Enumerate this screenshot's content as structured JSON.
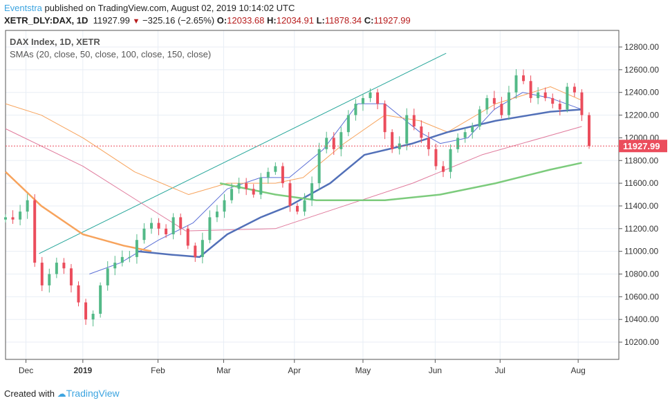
{
  "header": {
    "user": "Eventstra",
    "published": "published on TradingView.com, August 02, 2019 10:14:02 UTC",
    "symbol": "XETR_DLY:DAX, 1D",
    "last": "11927.99",
    "change": "−325.16 (−2.65%)",
    "o_label": "O:",
    "o": "12033.68",
    "h_label": "H:",
    "h": "12034.91",
    "l_label": "L:",
    "l": "11878.34",
    "c_label": "C:",
    "c": "11927.99"
  },
  "legend": {
    "title": "DAX Index, 1D, XETR",
    "indicator": "SMAs (20, close, 50, close, 100, close, 150, close)"
  },
  "footer": {
    "created": "Created with",
    "brand": "TradingView"
  },
  "chart_data": {
    "type": "candlestick",
    "title": "DAX Index, 1D, XETR",
    "ylim": [
      10100,
      12950
    ],
    "yticks": [
      "10200.00",
      "10400.00",
      "10600.00",
      "10800.00",
      "11000.00",
      "11200.00",
      "11400.00",
      "11600.00",
      "11800.00",
      "12000.00",
      "12200.00",
      "12400.00",
      "12600.00",
      "12800.00"
    ],
    "xticks": [
      {
        "label": "Dec",
        "i": 2.8
      },
      {
        "label": "2019",
        "i": 10.6
      },
      {
        "label": "Feb",
        "i": 20.9
      },
      {
        "label": "Mar",
        "i": 29.9
      },
      {
        "label": "Apr",
        "i": 39.6
      },
      {
        "label": "May",
        "i": 49
      },
      {
        "label": "Jun",
        "i": 58.9
      },
      {
        "label": "Jul",
        "i": 67.8
      },
      {
        "label": "Aug",
        "i": 78.5
      }
    ],
    "first_open": 11280,
    "closes": [
      11300,
      11280,
      11350,
      11450,
      10900,
      10700,
      10800,
      10900,
      10850,
      10700,
      10550,
      10400,
      10450,
      10700,
      10850,
      10900,
      10950,
      10950,
      11100,
      11200,
      11250,
      11200,
      11150,
      11300,
      11200,
      11050,
      10950,
      11100,
      11300,
      11350,
      11450,
      11550,
      11600,
      11550,
      11500,
      11650,
      11700,
      11750,
      11600,
      11400,
      11350,
      11450,
      11600,
      11900,
      12000,
      11900,
      12050,
      12200,
      12300,
      12350,
      12400,
      12300,
      12050,
      11900,
      11950,
      12200,
      12100,
      12000,
      11900,
      11750,
      11700,
      11900,
      12000,
      12050,
      12100,
      12250,
      12350,
      12300,
      12200,
      12400,
      12550,
      12500,
      12350,
      12400,
      12350,
      12300,
      12250,
      12450,
      12400,
      12200,
      11927.99
    ],
    "current_price": "11927.99",
    "colors": {
      "up": "#53b987",
      "down": "#eb4d5c"
    },
    "sma_lines": [
      {
        "name": "SMA 20",
        "color": "#5b6fd6",
        "width": 1,
        "points": [
          [
            11.5,
            10800
          ],
          [
            15.8,
            10900
          ],
          [
            21,
            11100
          ],
          [
            25.7,
            11250
          ],
          [
            30.4,
            11550
          ],
          [
            35,
            11650
          ],
          [
            38.9,
            11650
          ],
          [
            43.6,
            11900
          ],
          [
            48.3,
            12300
          ],
          [
            52,
            12300
          ],
          [
            56.8,
            12050
          ],
          [
            59.6,
            11950
          ],
          [
            63.4,
            12000
          ],
          [
            67,
            12250
          ],
          [
            70.9,
            12400
          ],
          [
            74.7,
            12350
          ],
          [
            79,
            12250
          ]
        ]
      },
      {
        "name": "SMA 50",
        "color": "#f7a35c",
        "width": 1,
        "points": [
          [
            0,
            12300
          ],
          [
            4.9,
            12200
          ],
          [
            10.6,
            12000
          ],
          [
            17.7,
            11700
          ],
          [
            25.1,
            11500
          ],
          [
            30.4,
            11600
          ],
          [
            37,
            11600
          ],
          [
            40.8,
            11650
          ],
          [
            46.4,
            11950
          ],
          [
            52,
            12200
          ],
          [
            56.8,
            12150
          ],
          [
            60.6,
            12050
          ],
          [
            67.2,
            12300
          ],
          [
            74.7,
            12450
          ],
          [
            79,
            12330
          ]
        ]
      },
      {
        "name": "SMA 100",
        "color": "#e07a9c",
        "width": 1,
        "points": [
          [
            0,
            12080
          ],
          [
            10.6,
            11750
          ],
          [
            18,
            11450
          ],
          [
            24.7,
            11180
          ],
          [
            37,
            11200
          ],
          [
            46.4,
            11400
          ],
          [
            55.8,
            11600
          ],
          [
            65.3,
            11850
          ],
          [
            79,
            12100
          ]
        ]
      },
      {
        "name": "SMA 150 (early)",
        "color": "#f7a35c",
        "width": 2.5,
        "points": [
          [
            0,
            11700
          ],
          [
            4.9,
            11400
          ],
          [
            10.6,
            11150
          ],
          [
            16.2,
            11050
          ],
          [
            20,
            11000
          ]
        ]
      },
      {
        "name": "SMA 150",
        "color": "#5270b8",
        "width": 2.5,
        "points": [
          [
            18.1,
            11000
          ],
          [
            22.8,
            10970
          ],
          [
            26.6,
            10950
          ],
          [
            30.4,
            11150
          ],
          [
            35,
            11300
          ],
          [
            38.9,
            11400
          ],
          [
            44.5,
            11600
          ],
          [
            49.2,
            11850
          ],
          [
            55.8,
            11950
          ],
          [
            60.6,
            12050
          ],
          [
            67.2,
            12150
          ],
          [
            74.7,
            12230
          ],
          [
            79,
            12250
          ]
        ]
      },
      {
        "name": "SMA green",
        "color": "#7ccb7c",
        "width": 2.5,
        "points": [
          [
            29.4,
            11600
          ],
          [
            37,
            11500
          ],
          [
            42.6,
            11450
          ],
          [
            52,
            11450
          ],
          [
            59.6,
            11500
          ],
          [
            67.2,
            11600
          ],
          [
            74.7,
            11720
          ],
          [
            79,
            11780
          ]
        ]
      }
    ],
    "trendline": {
      "color": "#26a69a",
      "points": [
        [
          4.6,
          10980
        ],
        [
          60.4,
          12745
        ]
      ]
    }
  }
}
